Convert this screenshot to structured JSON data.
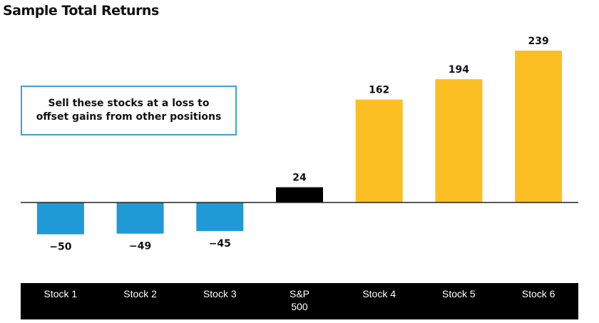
{
  "colors": {
    "negative": "#1f9ad6",
    "benchmark": "#000000",
    "positive": "#fbbf24",
    "annotation_border": "#3aa3d9"
  },
  "chart_data": {
    "type": "bar",
    "title": "Sample Total Returns",
    "categories": [
      "Stock 1",
      "Stock 2",
      "Stock 3",
      "S&P 500",
      "Stock 4",
      "Stock 5",
      "Stock 6"
    ],
    "values": [
      -50,
      -49,
      -45,
      24,
      162,
      194,
      239
    ],
    "value_labels": [
      "−50",
      "−49",
      "−45",
      "24",
      "162",
      "194",
      "239"
    ],
    "annotation": "Sell these stocks at a loss to offset gains from other positions",
    "grid": false,
    "legend": "none"
  }
}
